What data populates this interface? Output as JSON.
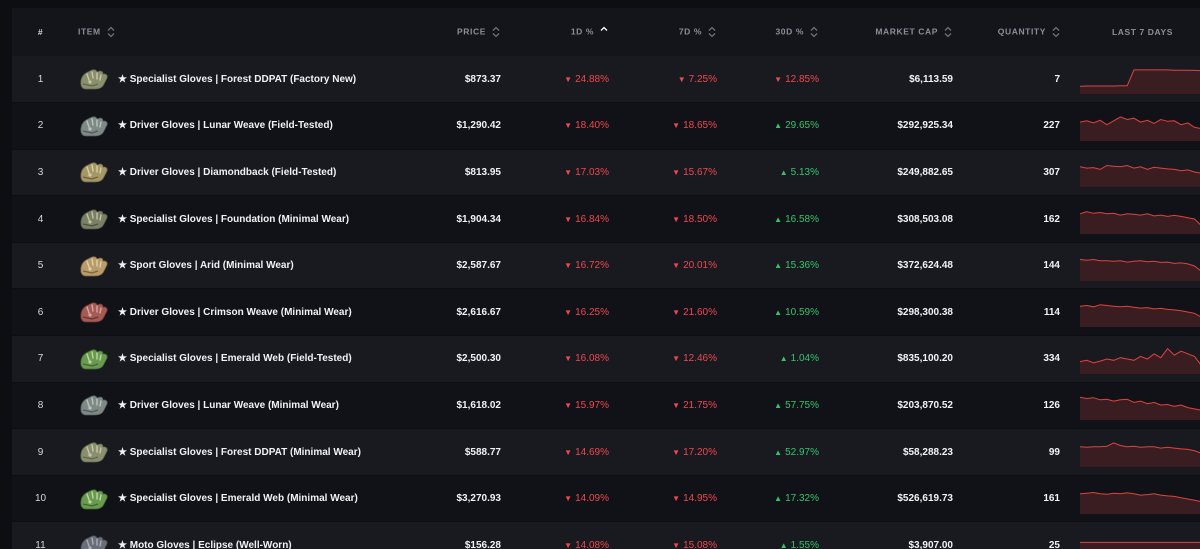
{
  "columns": {
    "rank": "#",
    "item": "ITEM",
    "price": "PRICE",
    "d1": "1D %",
    "d7": "7D %",
    "d30": "30D %",
    "cap": "MARKET CAP",
    "qty": "QUANTITY",
    "spark": "LAST 7 DAYS"
  },
  "colors": {
    "neg": "#f0474f",
    "pos": "#35c46a",
    "spark_line": "#e0423f",
    "spark_fill": "#3a1d20"
  },
  "rows": [
    {
      "rank": "1",
      "name": "★ Specialist Gloves | Forest DDPAT (Factory New)",
      "price": "$873.37",
      "d1": "24.88%",
      "d1dir": "down",
      "d7": "7.25%",
      "d7dir": "down",
      "d30": "12.85%",
      "d30dir": "down",
      "cap": "$6,113.59",
      "qty": "7",
      "glove": [
        "#8a8f70",
        "#5d6a4a",
        "#c9c6a8"
      ],
      "trend": [
        0.78,
        0.77,
        0.77,
        0.77,
        0.77,
        0.77,
        0.76,
        0.76,
        0.15,
        0.15,
        0.15,
        0.15,
        0.15,
        0.15,
        0.16,
        0.16,
        0.16,
        0.17,
        0.18,
        0.92
      ]
    },
    {
      "rank": "2",
      "name": "★ Driver Gloves | Lunar Weave (Field-Tested)",
      "price": "$1,290.42",
      "d1": "18.40%",
      "d1dir": "down",
      "d7": "18.65%",
      "d7dir": "down",
      "d30": "29.65%",
      "d30dir": "up",
      "cap": "$292,925.34",
      "qty": "227",
      "glove": [
        "#7f8a86",
        "#4e5a5a",
        "#b9c4c0"
      ],
      "trend": [
        0.35,
        0.3,
        0.38,
        0.28,
        0.45,
        0.3,
        0.15,
        0.25,
        0.2,
        0.35,
        0.28,
        0.4,
        0.25,
        0.32,
        0.3,
        0.45,
        0.38,
        0.55,
        0.6,
        0.8
      ]
    },
    {
      "rank": "3",
      "name": "★ Driver Gloves | Diamondback (Field-Tested)",
      "price": "$813.95",
      "d1": "17.03%",
      "d1dir": "down",
      "d7": "15.67%",
      "d7dir": "down",
      "d30": "5.13%",
      "d30dir": "up",
      "cap": "$249,882.65",
      "qty": "307",
      "glove": [
        "#a59766",
        "#6c6240",
        "#d8cfa8"
      ],
      "trend": [
        0.3,
        0.35,
        0.33,
        0.4,
        0.25,
        0.28,
        0.3,
        0.25,
        0.35,
        0.3,
        0.4,
        0.32,
        0.35,
        0.38,
        0.4,
        0.45,
        0.42,
        0.5,
        0.55,
        0.6
      ]
    },
    {
      "rank": "4",
      "name": "★ Specialist Gloves | Foundation (Minimal Wear)",
      "price": "$1,904.34",
      "d1": "16.84%",
      "d1dir": "down",
      "d7": "18.50%",
      "d7dir": "down",
      "d30": "16.58%",
      "d30dir": "up",
      "cap": "$308,503.08",
      "qty": "162",
      "glove": [
        "#7a8066",
        "#4b5040",
        "#c4c0a0"
      ],
      "trend": [
        0.3,
        0.22,
        0.28,
        0.25,
        0.3,
        0.28,
        0.35,
        0.3,
        0.32,
        0.35,
        0.3,
        0.38,
        0.35,
        0.4,
        0.36,
        0.4,
        0.45,
        0.5,
        0.75,
        0.8
      ]
    },
    {
      "rank": "5",
      "name": "★ Sport Gloves | Arid (Minimal Wear)",
      "price": "$2,587.67",
      "d1": "16.72%",
      "d1dir": "down",
      "d7": "20.01%",
      "d7dir": "down",
      "d30": "15.36%",
      "d30dir": "up",
      "cap": "$372,624.48",
      "qty": "144",
      "glove": [
        "#b89c6a",
        "#7c6440",
        "#e0ceaa"
      ],
      "trend": [
        0.25,
        0.28,
        0.25,
        0.3,
        0.3,
        0.32,
        0.3,
        0.35,
        0.32,
        0.3,
        0.34,
        0.32,
        0.36,
        0.35,
        0.4,
        0.38,
        0.42,
        0.5,
        0.7,
        0.85
      ]
    },
    {
      "rank": "6",
      "name": "★ Driver Gloves | Crimson Weave (Minimal Wear)",
      "price": "$2,616.67",
      "d1": "16.25%",
      "d1dir": "down",
      "d7": "21.60%",
      "d7dir": "down",
      "d30": "10.59%",
      "d30dir": "up",
      "cap": "$298,300.38",
      "qty": "114",
      "glove": [
        "#a45a55",
        "#6a3530",
        "#d8a8a0"
      ],
      "trend": [
        0.28,
        0.25,
        0.3,
        0.22,
        0.25,
        0.28,
        0.3,
        0.28,
        0.32,
        0.35,
        0.33,
        0.38,
        0.36,
        0.4,
        0.42,
        0.45,
        0.5,
        0.55,
        0.7,
        0.9
      ]
    },
    {
      "rank": "7",
      "name": "★ Specialist Gloves | Emerald Web (Field-Tested)",
      "price": "$2,500.30",
      "d1": "16.08%",
      "d1dir": "down",
      "d7": "12.46%",
      "d7dir": "down",
      "d30": "1.04%",
      "d30dir": "up",
      "cap": "$835,100.20",
      "qty": "334",
      "glove": [
        "#6a9a50",
        "#3e6a30",
        "#b8d8a0"
      ],
      "trend": [
        0.6,
        0.55,
        0.65,
        0.58,
        0.5,
        0.55,
        0.45,
        0.5,
        0.55,
        0.4,
        0.5,
        0.3,
        0.45,
        0.1,
        0.35,
        0.2,
        0.3,
        0.4,
        0.75,
        0.7
      ]
    },
    {
      "rank": "8",
      "name": "★ Driver Gloves | Lunar Weave (Minimal Wear)",
      "price": "$1,618.02",
      "d1": "15.97%",
      "d1dir": "down",
      "d7": "21.75%",
      "d7dir": "down",
      "d30": "57.75%",
      "d30dir": "up",
      "cap": "$203,870.52",
      "qty": "126",
      "glove": [
        "#7f8a86",
        "#4e5a5a",
        "#b9c4c0"
      ],
      "trend": [
        0.2,
        0.25,
        0.22,
        0.3,
        0.28,
        0.35,
        0.3,
        0.28,
        0.4,
        0.35,
        0.45,
        0.4,
        0.5,
        0.48,
        0.55,
        0.5,
        0.6,
        0.65,
        0.7,
        0.85
      ]
    },
    {
      "rank": "9",
      "name": "★ Specialist Gloves | Forest DDPAT (Minimal Wear)",
      "price": "$588.77",
      "d1": "14.69%",
      "d1dir": "down",
      "d7": "17.20%",
      "d7dir": "down",
      "d30": "52.97%",
      "d30dir": "up",
      "cap": "$58,288.23",
      "qty": "99",
      "glove": [
        "#8a8f70",
        "#5d6a4a",
        "#c9c6a8"
      ],
      "trend": [
        0.3,
        0.32,
        0.3,
        0.3,
        0.28,
        0.15,
        0.25,
        0.3,
        0.28,
        0.32,
        0.3,
        0.3,
        0.35,
        0.32,
        0.35,
        0.38,
        0.4,
        0.45,
        0.55,
        0.7
      ]
    },
    {
      "rank": "10",
      "name": "★ Specialist Gloves | Emerald Web (Minimal Wear)",
      "price": "$3,270.93",
      "d1": "14.09%",
      "d1dir": "down",
      "d7": "14.95%",
      "d7dir": "down",
      "d30": "17.32%",
      "d30dir": "up",
      "cap": "$526,619.73",
      "qty": "161",
      "glove": [
        "#6a9a50",
        "#3e6a30",
        "#b8d8a0"
      ],
      "trend": [
        0.3,
        0.28,
        0.25,
        0.3,
        0.32,
        0.28,
        0.3,
        0.26,
        0.3,
        0.35,
        0.33,
        0.3,
        0.35,
        0.38,
        0.4,
        0.45,
        0.5,
        0.55,
        0.6,
        0.9
      ]
    },
    {
      "rank": "11",
      "name": "★ Moto Gloves | Eclipse (Well-Worn)",
      "price": "$156.28",
      "d1": "14.08%",
      "d1dir": "down",
      "d7": "15.08%",
      "d7dir": "down",
      "d30": "1.55%",
      "d30dir": "up",
      "cap": "$3,907.00",
      "qty": "25",
      "glove": [
        "#6a6e78",
        "#3c4048",
        "#a8acb4"
      ],
      "trend": [
        0.4,
        0.4,
        0.4,
        0.4,
        0.4,
        0.4,
        0.4,
        0.4,
        0.4,
        0.4,
        0.4,
        0.4,
        0.4,
        0.4,
        0.4,
        0.4,
        0.4,
        0.4,
        0.4,
        0.4
      ]
    }
  ]
}
